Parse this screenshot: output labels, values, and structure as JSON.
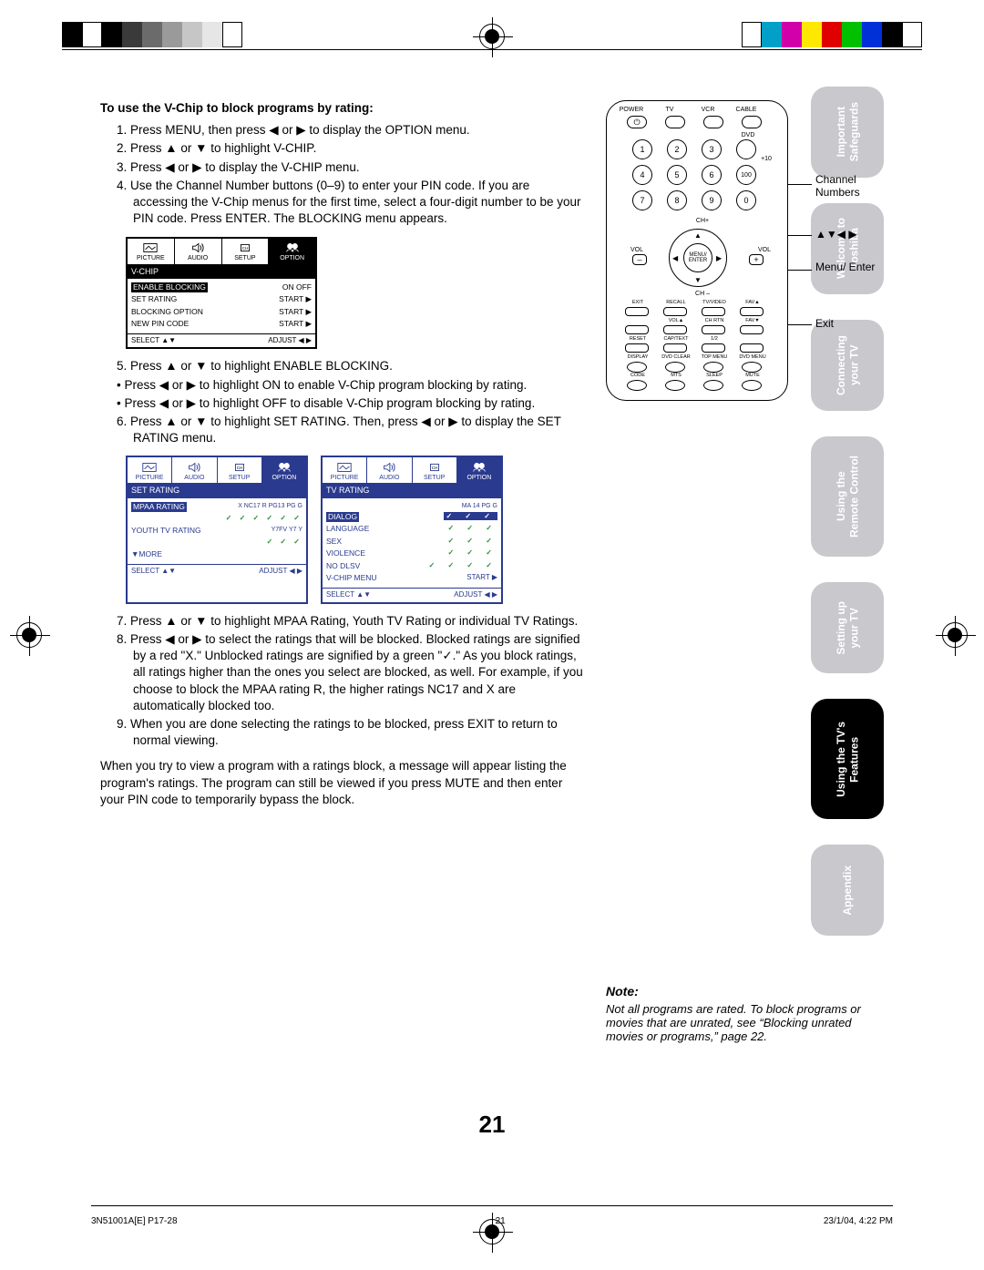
{
  "topbar": {
    "bw": [
      "#000000",
      "#ffffff",
      "#000000",
      "#3a3a3a",
      "#6b6b6b",
      "#9a9a9a",
      "#c6c6c6",
      "#e6e6e6",
      "#ffffff"
    ],
    "color": [
      "#ffffff",
      "#00a0c8",
      "#d200a8",
      "#ffe800",
      "#e00000",
      "#00c000",
      "#0030d8",
      "#000000",
      "#ffffff"
    ]
  },
  "tabs": [
    {
      "l1": "Important",
      "l2": "Safeguards",
      "active": false,
      "h": "h2"
    },
    {
      "l1": "Welcome to",
      "l2": "Toshiba",
      "active": false,
      "h": "h2"
    },
    {
      "l1": "Connecting",
      "l2": "your TV",
      "active": false,
      "h": "h2"
    },
    {
      "l1": "Using the",
      "l2": "Remote Control",
      "active": false,
      "h": "h3"
    },
    {
      "l1": "Setting up",
      "l2": "your TV",
      "active": false,
      "h": "h2"
    },
    {
      "l1": "Using the TV's",
      "l2": "Features",
      "active": true,
      "h": "h3"
    },
    {
      "l1": "Appendix",
      "l2": "",
      "active": false,
      "h": "h2"
    }
  ],
  "heading": "To use the V-Chip to block programs by rating:",
  "steps1": [
    "1. Press MENU, then press ◀ or ▶ to display the OPTION menu.",
    "2. Press ▲ or ▼ to highlight V-CHIP.",
    "3. Press ◀ or ▶ to display the V-CHIP menu.",
    "4. Use the Channel Number buttons (0–9) to enter your PIN code. If you are accessing the V-Chip menus for the first time, select a four-digit number to be your PIN code. Press ENTER. The BLOCKING menu appears."
  ],
  "osd1": {
    "tabs": [
      "PICTURE",
      "AUDIO",
      "SETUP",
      "OPTION"
    ],
    "title": "V-CHIP",
    "rows": [
      {
        "l": "ENABLE BLOCKING",
        "r": "ON OFF",
        "hl": true
      },
      {
        "l": "SET RATING",
        "r": "START ▶",
        "hl": false
      },
      {
        "l": "BLOCKING OPTION",
        "r": "START ▶",
        "hl": false
      },
      {
        "l": "NEW PIN CODE",
        "r": "START ▶",
        "hl": false
      }
    ],
    "ftr_l": "SELECT  ▲▼",
    "ftr_r": "ADJUST  ◀ ▶"
  },
  "steps2_lead": "5. Press ▲ or ▼ to highlight ENABLE BLOCKING.",
  "steps2_bullets": [
    "• Press ◀ or ▶ to highlight ON to enable V-Chip program blocking by rating.",
    "• Press ◀ or ▶ to highlight OFF to disable V-Chip program blocking by rating."
  ],
  "step6": "6. Press ▲ or ▼ to highlight SET RATING. Then, press ◀ or ▶ to display the SET RATING menu.",
  "osd2": {
    "title": "SET RATING",
    "rows": [
      {
        "l": "MPAA RATING",
        "r": "X NC17 R PG13 PG G",
        "hl": true,
        "chk": "✓ ✓ ✓ ✓ ✓ ✓"
      },
      {
        "l": "YOUTH TV RATING",
        "r": "Y7FV Y7 Y",
        "hl": false,
        "chk": "✓ ✓ ✓"
      }
    ],
    "more": "▼MORE",
    "ftr_l": "SELECT  ▲▼",
    "ftr_r": "ADJUST  ◀ ▶"
  },
  "osd3": {
    "title": "TV RATING",
    "cols": "MA  14  PG  G",
    "rows": [
      "DIALOG",
      "LANGUAGE",
      "SEX",
      "VIOLENCE",
      "NO DLSV",
      "V-CHIP MENU"
    ],
    "start": "START ▶",
    "ftr_l": "SELECT  ▲▼",
    "ftr_r": "ADJUST  ◀ ▶"
  },
  "steps3": [
    "7. Press ▲ or ▼ to highlight MPAA Rating, Youth TV Rating or individual TV Ratings.",
    "8. Press ◀ or ▶ to select the ratings that will be blocked. Blocked ratings are signified by a red \"X.\" Unblocked ratings are signified by a green \"✓.\" As you block ratings, all ratings higher than the ones you select are blocked, as well. For example, if you choose to block the MPAA rating R, the higher ratings NC17 and X are automatically blocked too.",
    "9. When you are done selecting the ratings to be blocked, press EXIT to return to normal viewing."
  ],
  "closing": "When you try to view a program with a ratings block, a message will appear listing the program's ratings. The program can still be viewed if you press MUTE and then enter your PIN code to temporarily bypass the block.",
  "remote": {
    "top_labels": [
      "POWER",
      "TV",
      "VCR",
      "CABLE"
    ],
    "row2_labels": [
      "",
      "",
      "",
      "DVD"
    ],
    "plus10": "+10",
    "chplus": "CH+",
    "chminus": "CH –",
    "vol": "VOL",
    "menu": "MENU/\nENTER",
    "btnrow1": [
      "EXIT",
      "RECALL",
      "TV/VIDEO",
      "FAV▲"
    ],
    "btnrow2": [
      "VOL▲",
      "CH RTN",
      "FAV▼"
    ],
    "btnrow3": [
      "RESET",
      "CAP/TEXT",
      "1/2",
      ""
    ],
    "btnrow4": [
      "DISPLAY",
      "DVD CLEAR",
      "TOP MENU",
      "DVD MENU"
    ],
    "btnrow5": [
      "CODE",
      "MTS",
      "SLEEP",
      "MUTE"
    ]
  },
  "callouts": {
    "ch": "Channel Numbers",
    "arrows": "▲▼◀ ▶",
    "menu": "Menu/ Enter",
    "exit": "Exit"
  },
  "note_h": "Note:",
  "note_p": "Not all programs are rated. To block programs or movies that are unrated, see “Blocking unrated movies or programs,” page 22.",
  "pagenum": "21",
  "footer_l": "3N51001A[E] P17-28",
  "footer_c": "21",
  "footer_r": "23/1/04, 4:22 PM"
}
